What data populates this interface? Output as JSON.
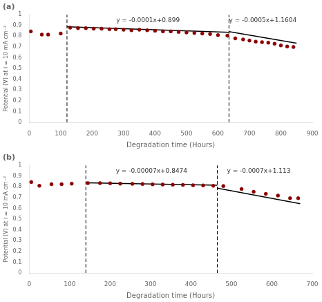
{
  "chart_data": [
    {
      "type": "scatter",
      "title": "(a)",
      "x_label": "Degradation time (Hours)",
      "y_label": "Potential (V) at i = 10 mA cm⁻²",
      "series": [
        {
          "type": "scatter",
          "color": "#8B0000",
          "marker": "circle",
          "x": [
            5,
            40,
            60,
            100,
            130,
            155,
            180,
            205,
            230,
            255,
            275,
            300,
            325,
            350,
            375,
            400,
            425,
            450,
            475,
            500,
            525,
            550,
            575,
            600,
            630,
            655,
            680,
            700,
            720,
            740,
            760,
            780,
            800,
            820,
            840
          ],
          "values": [
            0.845,
            0.815,
            0.815,
            0.825,
            0.88,
            0.875,
            0.875,
            0.87,
            0.87,
            0.865,
            0.865,
            0.86,
            0.855,
            0.86,
            0.855,
            0.85,
            0.845,
            0.845,
            0.84,
            0.835,
            0.83,
            0.825,
            0.82,
            0.81,
            0.805,
            0.78,
            0.77,
            0.76,
            0.75,
            0.745,
            0.74,
            0.73,
            0.715,
            0.705,
            0.7
          ]
        },
        {
          "type": "line",
          "color": "#000000",
          "line_style": "solid",
          "x": [
            120,
            635
          ],
          "values": [
            0.887,
            0.8355
          ]
        },
        {
          "type": "line",
          "color": "#000000",
          "line_style": "solid",
          "x": [
            635,
            850
          ],
          "values": [
            0.8429,
            0.7354
          ]
        }
      ],
      "vlines": [
        {
          "x": 120,
          "color": "#000000",
          "line_style": "dashed"
        },
        {
          "x": 635,
          "color": "#000000",
          "line_style": "dashed"
        }
      ],
      "annotations": [
        "y = -0.0001x+0.899",
        "y = -0.0005x+1.1604"
      ],
      "xlim": [
        0,
        900
      ],
      "xticks": [
        0,
        100,
        200,
        300,
        400,
        500,
        600,
        700,
        800,
        900
      ],
      "ylim": [
        0,
        1
      ],
      "yticks": [
        0,
        0.1,
        0.2,
        0.3,
        0.4,
        0.5,
        0.6,
        0.7,
        0.8,
        0.9,
        1
      ],
      "grid": false
    },
    {
      "type": "scatter",
      "title": "(b)",
      "x_label": "Degradation time (Hours)",
      "y_label": "Potential (V) at i = 10 mA cm⁻²",
      "series": [
        {
          "type": "scatter",
          "color": "#8B0000",
          "marker": "circle",
          "x": [
            5,
            25,
            55,
            80,
            105,
            145,
            175,
            200,
            225,
            255,
            280,
            305,
            330,
            355,
            380,
            405,
            430,
            455,
            480,
            525,
            555,
            585,
            615,
            645,
            665
          ],
          "values": [
            0.845,
            0.81,
            0.825,
            0.825,
            0.83,
            0.835,
            0.835,
            0.833,
            0.83,
            0.828,
            0.826,
            0.824,
            0.822,
            0.82,
            0.818,
            0.815,
            0.813,
            0.81,
            0.808,
            0.78,
            0.755,
            0.735,
            0.72,
            0.695,
            0.695
          ]
        },
        {
          "type": "line",
          "color": "#000000",
          "line_style": "solid",
          "x": [
            140,
            465
          ],
          "values": [
            0.8376,
            0.81485
          ]
        },
        {
          "type": "line",
          "color": "#000000",
          "line_style": "solid",
          "x": [
            465,
            670
          ],
          "values": [
            0.7875,
            0.644
          ]
        }
      ],
      "vlines": [
        {
          "x": 140,
          "color": "#000000",
          "line_style": "dashed"
        },
        {
          "x": 465,
          "color": "#000000",
          "line_style": "dashed"
        }
      ],
      "annotations": [
        "y = -0.00007x+0.8474",
        "y = -0.0007x+1.113"
      ],
      "xlim": [
        0,
        700
      ],
      "xticks": [
        0,
        100,
        200,
        300,
        400,
        500,
        600,
        700
      ],
      "ylim": [
        0,
        1
      ],
      "yticks": [
        0,
        0.1,
        0.2,
        0.3,
        0.4,
        0.5,
        0.6,
        0.7,
        0.8,
        0.9,
        1
      ],
      "grid": false
    }
  ]
}
